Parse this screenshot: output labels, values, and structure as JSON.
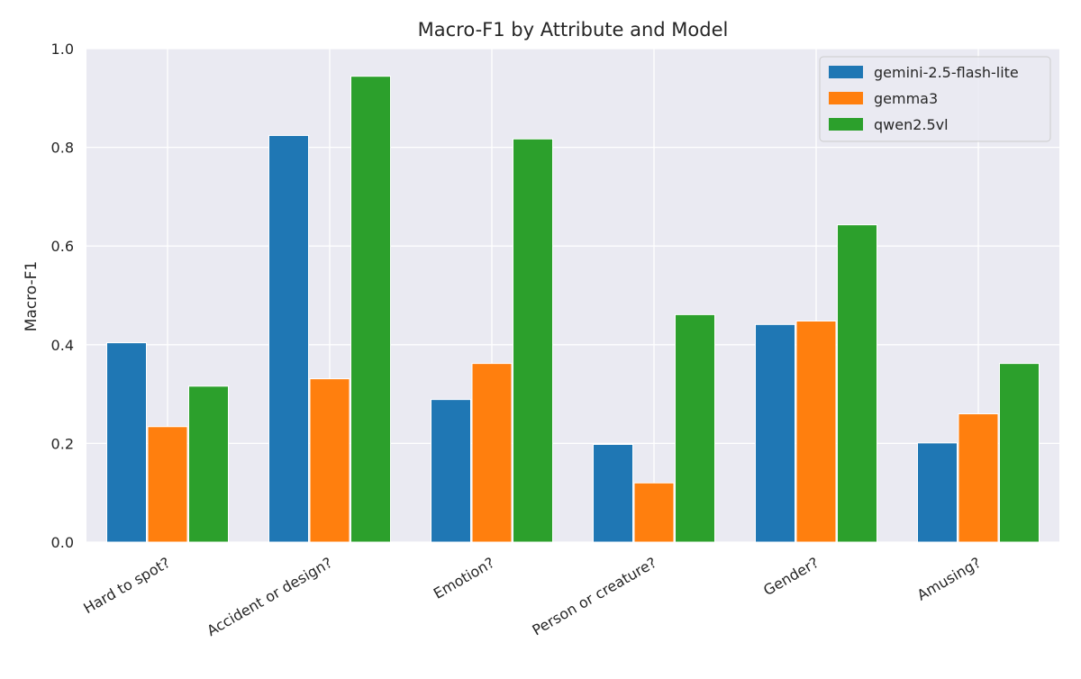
{
  "chart_data": {
    "type": "bar",
    "title": "Macro-F1 by Attribute and Model",
    "xlabel": "",
    "ylabel": "Macro-F1",
    "ylim": [
      0,
      1.0
    ],
    "yticks": [
      "0.0",
      "0.2",
      "0.4",
      "0.6",
      "0.8",
      "1.0"
    ],
    "grid": true,
    "legend_position": "top-right",
    "categories": [
      "Hard to spot?",
      "Accident or design?",
      "Emotion?",
      "Person or creature?",
      "Gender?",
      "Amusing?"
    ],
    "series": [
      {
        "name": "gemini-2.5-flash-lite",
        "color": "#1f77b4",
        "values": [
          0.404,
          0.824,
          0.289,
          0.198,
          0.441,
          0.201
        ]
      },
      {
        "name": "gemma3",
        "color": "#ff7f0e",
        "values": [
          0.234,
          0.331,
          0.362,
          0.12,
          0.448,
          0.26
        ]
      },
      {
        "name": "qwen2.5vl",
        "color": "#2ca02c",
        "values": [
          0.316,
          0.944,
          0.817,
          0.461,
          0.643,
          0.362
        ]
      }
    ],
    "plot_background": "#eaeaf2",
    "grid_color": "#ffffff"
  }
}
